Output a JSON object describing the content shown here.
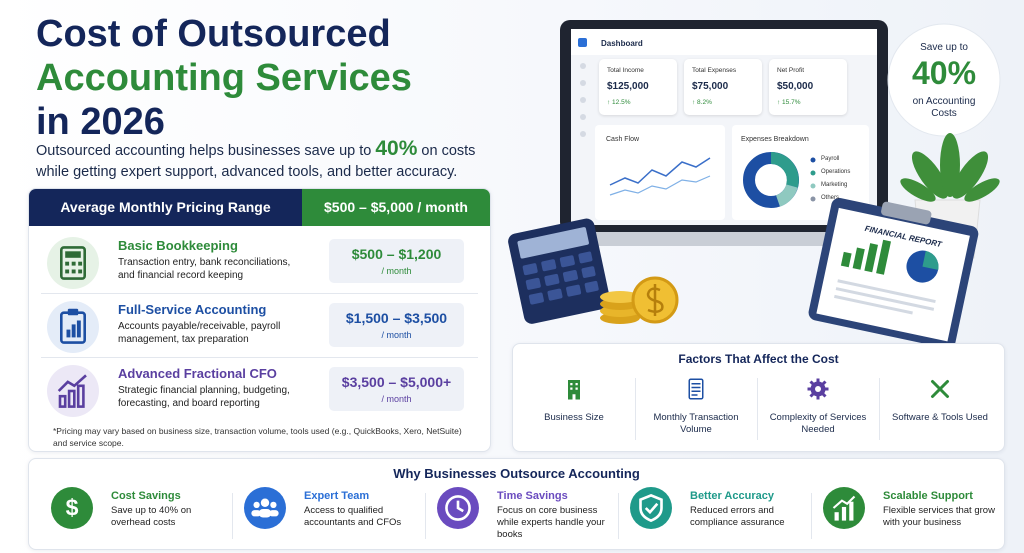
{
  "header": {
    "title_lines": [
      "Cost of Outsourced",
      "Accounting Services",
      "in 2026"
    ],
    "subtitle": {
      "before": "Outsourced accounting helps businesses save up to ",
      "highlight": "40%",
      "after": " on costs while getting expert support, advanced tools, and better accuracy."
    }
  },
  "pricing": {
    "header_label": "Average Monthly Pricing Range",
    "header_range": "$500 – $5,000 / month",
    "rows": [
      {
        "name": "Basic Bookkeeping",
        "description": "Transaction entry, bank reconciliations, and financial record keeping",
        "price": "$500 – $1,200",
        "unit": "/ month"
      },
      {
        "name": "Full-Service Accounting",
        "description": "Accounts payable/receivable, payroll management, tax preparation",
        "price": "$1,500 – $3,500",
        "unit": "/ month"
      },
      {
        "name": "Advanced Fractional CFO",
        "description": "Strategic financial planning, budgeting, forecasting, and board reporting",
        "price": "$3,500 – $5,000+",
        "unit": "/ month"
      }
    ],
    "footnote": "*Pricing may vary based on business size, transaction volume, tools used (e.g., QuickBooks, Xero, NetSuite) and service scope."
  },
  "dashboard": {
    "title": "Dashboard",
    "cards": [
      {
        "label": "Total Income",
        "value": "$125,000",
        "change": "↑ 12.5%"
      },
      {
        "label": "Total Expenses",
        "value": "$75,000",
        "change": "↑ 8.2%"
      },
      {
        "label": "Net Profit",
        "value": "$50,000",
        "change": "↑ 15.7%"
      }
    ],
    "cash_flow": "Cash Flow",
    "expenses_title": "Expenses Breakdown",
    "expenses_legend": [
      "Payroll",
      "Operations",
      "Marketing",
      "Others"
    ],
    "report_title": "FINANCIAL REPORT"
  },
  "badge": {
    "top": "Save up to",
    "value": "40%",
    "bottom": "on Accounting Costs"
  },
  "factors": {
    "title": "Factors That Affect the Cost",
    "items": [
      "Business Size",
      "Monthly Transaction Volume",
      "Complexity of Services Needed",
      "Software & Tools Used"
    ]
  },
  "reasons": {
    "title": "Why Businesses Outsource Accounting",
    "items": [
      {
        "title": "Cost Savings",
        "description": "Save up to 40% on overhead costs"
      },
      {
        "title": "Expert Team",
        "description": "Access to qualified accountants and CFOs"
      },
      {
        "title": "Time Savings",
        "description": "Focus on core business while experts handle your books"
      },
      {
        "title": "Better Accuracy",
        "description": "Reduced errors and compliance assurance"
      },
      {
        "title": "Scalable Support",
        "description": "Flexible services that grow with your business"
      }
    ]
  }
}
